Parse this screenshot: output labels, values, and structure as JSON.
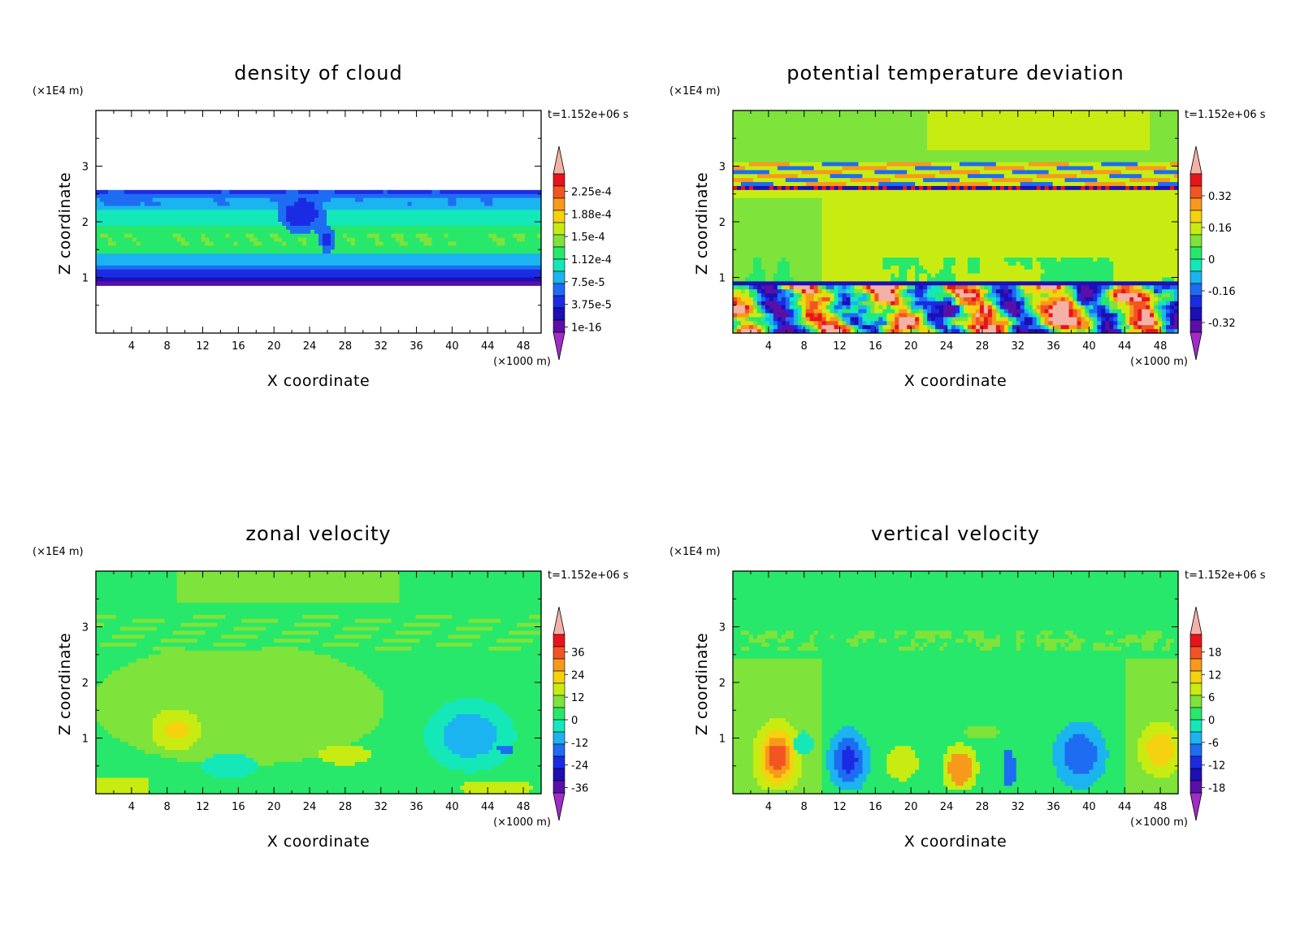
{
  "chart_data": [
    {
      "type": "heatmap",
      "title": "density of cloud",
      "xlabel": "X coordinate",
      "ylabel": "Z coordinate",
      "x_unit": "(×1000 m)",
      "y_unit": "(×1E4 m)",
      "time": "t=1.152e+06 s",
      "x_ticks": [
        4,
        8,
        12,
        16,
        20,
        24,
        28,
        32,
        36,
        40,
        44,
        48
      ],
      "y_ticks": [
        1,
        2,
        3
      ],
      "xlim": [
        0,
        50
      ],
      "ylim": [
        0,
        4
      ],
      "colorbar_labels": [
        "2.25e-4",
        "1.88e-4",
        "1.5e-4",
        "1.12e-4",
        "7.5e-5",
        "3.75e-5",
        "1e-16"
      ],
      "colors": [
        "#f4b2a6",
        "#e8141b",
        "#f25522",
        "#f79a1c",
        "#f5d20f",
        "#c8ec12",
        "#7ee33a",
        "#27e86a",
        "#14e8b9",
        "#1bb4f0",
        "#1e6cf2",
        "#1b2be4",
        "#1c0fb3",
        "#5a0fa8",
        "#a22cc7"
      ],
      "field": "cloud"
    },
    {
      "type": "heatmap",
      "title": "potential temperature deviation",
      "xlabel": "X coordinate",
      "ylabel": "Z coordinate",
      "x_unit": "(×1000 m)",
      "y_unit": "(×1E4 m)",
      "time": "t=1.152e+06 s",
      "x_ticks": [
        4,
        8,
        12,
        16,
        20,
        24,
        28,
        32,
        36,
        40,
        44,
        48
      ],
      "y_ticks": [
        1,
        2,
        3
      ],
      "xlim": [
        0,
        50
      ],
      "ylim": [
        0,
        4
      ],
      "colorbar_labels": [
        "0.32",
        "0.16",
        "0",
        "-0.16",
        "-0.32"
      ],
      "colors": [
        "#f4b2a6",
        "#e8141b",
        "#f25522",
        "#f79a1c",
        "#f5d20f",
        "#c8ec12",
        "#7ee33a",
        "#27e86a",
        "#14e8b9",
        "#1bb4f0",
        "#1e6cf2",
        "#1b2be4",
        "#1c0fb3",
        "#5a0fa8",
        "#a22cc7"
      ],
      "field": "theta"
    },
    {
      "type": "heatmap",
      "title": "zonal velocity",
      "xlabel": "X coordinate",
      "ylabel": "Z coordinate",
      "x_unit": "(×1000 m)",
      "y_unit": "(×1E4 m)",
      "time": "t=1.152e+06 s",
      "x_ticks": [
        4,
        8,
        12,
        16,
        20,
        24,
        28,
        32,
        36,
        40,
        44,
        48
      ],
      "y_ticks": [
        1,
        2,
        3
      ],
      "xlim": [
        0,
        50
      ],
      "ylim": [
        0,
        4
      ],
      "colorbar_labels": [
        "36",
        "24",
        "12",
        "0",
        "-12",
        "-24",
        "-36"
      ],
      "colors": [
        "#f4b2a6",
        "#e8141b",
        "#f25522",
        "#f79a1c",
        "#f5d20f",
        "#c8ec12",
        "#7ee33a",
        "#27e86a",
        "#14e8b9",
        "#1bb4f0",
        "#1e6cf2",
        "#1b2be4",
        "#1c0fb3",
        "#5a0fa8",
        "#a22cc7"
      ],
      "field": "zonal"
    },
    {
      "type": "heatmap",
      "title": "vertical velocity",
      "xlabel": "X coordinate",
      "ylabel": "Z coordinate",
      "x_unit": "(×1000 m)",
      "y_unit": "(×1E4 m)",
      "time": "t=1.152e+06 s",
      "x_ticks": [
        4,
        8,
        12,
        16,
        20,
        24,
        28,
        32,
        36,
        40,
        44,
        48
      ],
      "y_ticks": [
        1,
        2,
        3
      ],
      "xlim": [
        0,
        50
      ],
      "ylim": [
        0,
        4
      ],
      "colorbar_labels": [
        "18",
        "12",
        "6",
        "0",
        "-6",
        "-12",
        "-18"
      ],
      "colors": [
        "#f4b2a6",
        "#e8141b",
        "#f25522",
        "#f79a1c",
        "#f5d20f",
        "#c8ec12",
        "#7ee33a",
        "#27e86a",
        "#14e8b9",
        "#1bb4f0",
        "#1e6cf2",
        "#1b2be4",
        "#1c0fb3",
        "#5a0fa8",
        "#a22cc7"
      ],
      "field": "vertical"
    }
  ]
}
